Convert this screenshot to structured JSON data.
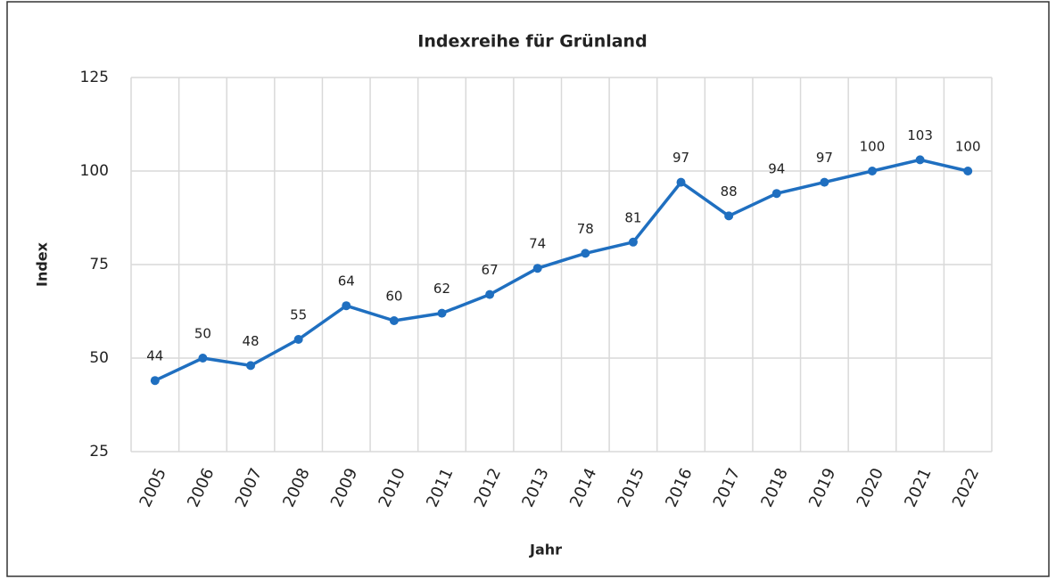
{
  "chart_data": {
    "type": "line",
    "title": "Indexreihe für Grünland",
    "x_label": "Jahr",
    "y_label": "Index",
    "categories": [
      "2005",
      "2006",
      "2007",
      "2008",
      "2009",
      "2010",
      "2011",
      "2012",
      "2013",
      "2014",
      "2015",
      "2016",
      "2017",
      "2018",
      "2019",
      "2020",
      "2021",
      "2022"
    ],
    "values": [
      44,
      50,
      48,
      55,
      64,
      60,
      62,
      67,
      74,
      78,
      81,
      97,
      88,
      94,
      97,
      100,
      103,
      100
    ],
    "color": "#1f6fc0",
    "ylim": [
      25,
      125
    ],
    "yticks": [
      25,
      50,
      75,
      100,
      125
    ],
    "grid": true
  }
}
